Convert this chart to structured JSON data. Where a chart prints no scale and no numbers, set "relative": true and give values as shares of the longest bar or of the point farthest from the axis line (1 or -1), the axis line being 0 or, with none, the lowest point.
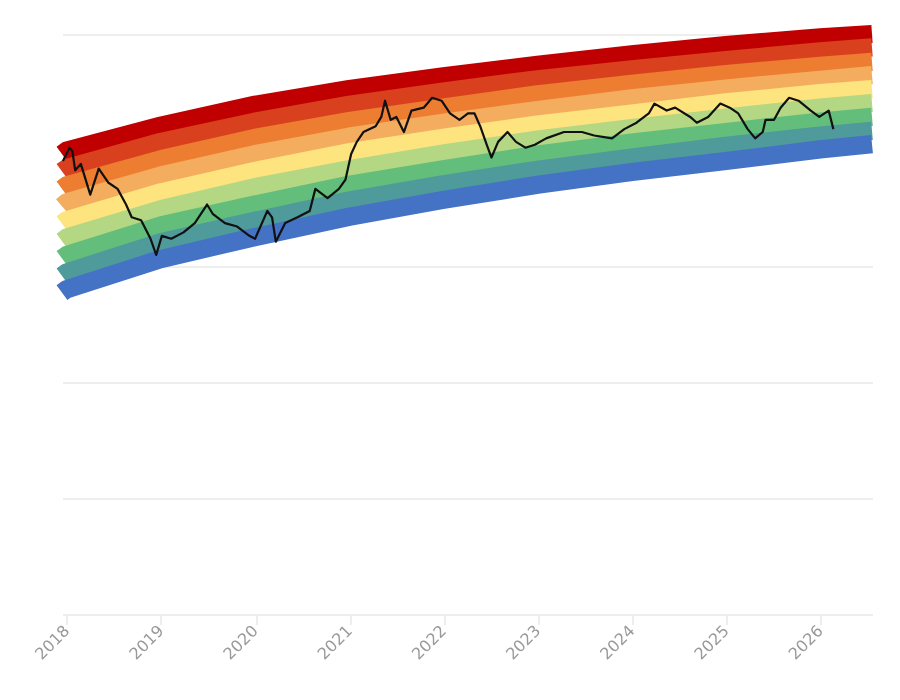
{
  "chart_data": {
    "type": "line",
    "relative": true,
    "grid": "y",
    "tick_labels": "x",
    "xlim": [
      2017.95,
      2026.55
    ],
    "xticks": [
      2018,
      2019,
      2020,
      2021,
      2022,
      2023,
      2024,
      2025,
      2026
    ],
    "x": [
      2017.95,
      2018.0,
      2019.0,
      2020.0,
      2021.0,
      2022.0,
      2023.0,
      2024.0,
      2025.0,
      2026.0,
      2026.55
    ],
    "series": [
      {
        "color": "#c00000",
        "values": [
          0.793,
          0.799,
          0.842,
          0.878,
          0.905,
          0.927,
          0.947,
          0.965,
          0.981,
          0.994,
          1
        ]
      },
      {
        "color": "#d9411e",
        "values": [
          0.763,
          0.769,
          0.814,
          0.849,
          0.878,
          0.901,
          0.922,
          0.939,
          0.955,
          0.97,
          0.977
        ]
      },
      {
        "color": "#ed7d31",
        "values": [
          0.733,
          0.739,
          0.784,
          0.821,
          0.85,
          0.873,
          0.896,
          0.914,
          0.931,
          0.945,
          0.952
        ]
      },
      {
        "color": "#f4ad5e",
        "values": [
          0.703,
          0.71,
          0.756,
          0.793,
          0.823,
          0.847,
          0.869,
          0.889,
          0.906,
          0.921,
          0.929
        ]
      },
      {
        "color": "#fde47f",
        "values": [
          0.673,
          0.679,
          0.727,
          0.764,
          0.796,
          0.821,
          0.844,
          0.863,
          0.882,
          0.898,
          0.905
        ]
      },
      {
        "color": "#b3d783",
        "values": [
          0.643,
          0.649,
          0.698,
          0.736,
          0.767,
          0.794,
          0.818,
          0.838,
          0.856,
          0.873,
          0.881
        ]
      },
      {
        "color": "#63be7b",
        "values": [
          0.613,
          0.619,
          0.67,
          0.706,
          0.74,
          0.767,
          0.792,
          0.813,
          0.831,
          0.849,
          0.857
        ]
      },
      {
        "color": "#4f9a9a",
        "values": [
          0.583,
          0.589,
          0.641,
          0.678,
          0.713,
          0.741,
          0.766,
          0.787,
          0.807,
          0.825,
          0.833
        ]
      },
      {
        "color": "#4472c4",
        "values": [
          0.554,
          0.56,
          0.612,
          0.65,
          0.685,
          0.714,
          0.74,
          0.762,
          0.781,
          0.801,
          0.81
        ]
      },
      {
        "color": "#111111",
        "x": [
          2017.96,
          2018.03,
          2018.06,
          2018.09,
          2018.15,
          2018.25,
          2018.34,
          2018.44,
          2018.54,
          2018.63,
          2018.69,
          2018.79,
          2018.89,
          2018.95,
          2019.01,
          2019.11,
          2019.24,
          2019.36,
          2019.49,
          2019.55,
          2019.68,
          2019.81,
          2019.94,
          2020.0,
          2020.13,
          2020.18,
          2020.22,
          2020.32,
          2020.45,
          2020.58,
          2020.64,
          2020.77,
          2020.89,
          2020.96,
          2021.02,
          2021.08,
          2021.15,
          2021.28,
          2021.34,
          2021.38,
          2021.44,
          2021.5,
          2021.58,
          2021.66,
          2021.79,
          2021.88,
          2021.98,
          2022.07,
          2022.17,
          2022.26,
          2022.33,
          2022.39,
          2022.46,
          2022.51,
          2022.58,
          2022.68,
          2022.77,
          2022.87,
          2022.97,
          2023.09,
          2023.28,
          2023.47,
          2023.6,
          2023.79,
          2023.92,
          2024.05,
          2024.18,
          2024.24,
          2024.37,
          2024.46,
          2024.62,
          2024.69,
          2024.81,
          2024.94,
          2025.04,
          2025.13,
          2025.23,
          2025.31,
          2025.39,
          2025.42,
          2025.51,
          2025.58,
          2025.67,
          2025.77,
          2025.9,
          2025.99,
          2026.09,
          2026.14
        ],
        "values": [
          0.781,
          0.804,
          0.798,
          0.765,
          0.776,
          0.723,
          0.768,
          0.744,
          0.733,
          0.706,
          0.684,
          0.679,
          0.647,
          0.619,
          0.652,
          0.647,
          0.658,
          0.674,
          0.706,
          0.69,
          0.674,
          0.668,
          0.652,
          0.647,
          0.695,
          0.684,
          0.642,
          0.674,
          0.684,
          0.695,
          0.733,
          0.717,
          0.733,
          0.749,
          0.793,
          0.814,
          0.831,
          0.841,
          0.857,
          0.885,
          0.852,
          0.857,
          0.831,
          0.868,
          0.873,
          0.89,
          0.885,
          0.863,
          0.852,
          0.863,
          0.863,
          0.841,
          0.809,
          0.787,
          0.814,
          0.831,
          0.814,
          0.804,
          0.809,
          0.82,
          0.831,
          0.831,
          0.825,
          0.82,
          0.836,
          0.847,
          0.863,
          0.88,
          0.868,
          0.873,
          0.857,
          0.847,
          0.857,
          0.88,
          0.873,
          0.863,
          0.836,
          0.82,
          0.831,
          0.852,
          0.852,
          0.873,
          0.89,
          0.885,
          0.868,
          0.857,
          0.868,
          0.836
        ]
      }
    ]
  }
}
